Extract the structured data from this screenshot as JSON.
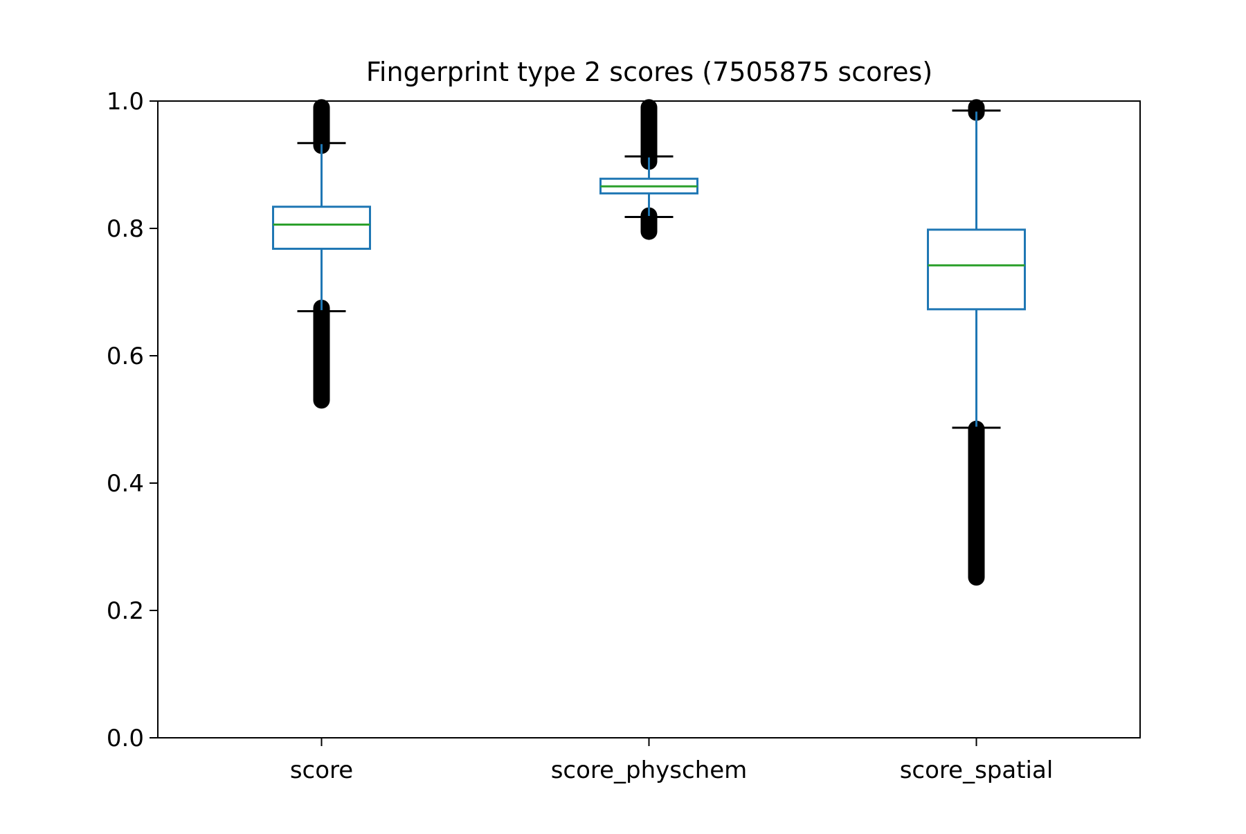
{
  "chart_data": {
    "type": "box",
    "title": "Fingerprint type 2 scores (7505875 scores)",
    "xlabel": "",
    "ylabel": "",
    "ylim": [
      0,
      1
    ],
    "yticks": [
      "0.0",
      "0.2",
      "0.4",
      "0.6",
      "0.8",
      "1.0"
    ],
    "grid": false,
    "categories": [
      "score",
      "score_physchem",
      "score_spatial"
    ],
    "boxes": [
      {
        "label": "score",
        "whisker_low": 0.67,
        "q1": 0.768,
        "median": 0.806,
        "q3": 0.834,
        "whisker_high": 0.934,
        "outliers_low": [
          0.53,
          0.675
        ],
        "outliers_high": [
          0.93,
          0.99
        ]
      },
      {
        "label": "score_physchem",
        "whisker_low": 0.818,
        "q1": 0.855,
        "median": 0.866,
        "q3": 0.878,
        "whisker_high": 0.913,
        "outliers_low": [
          0.795,
          0.82
        ],
        "outliers_high": [
          0.905,
          0.99
        ]
      },
      {
        "label": "score_spatial",
        "whisker_low": 0.487,
        "q1": 0.673,
        "median": 0.742,
        "q3": 0.798,
        "whisker_high": 0.985,
        "outliers_low": [
          0.252,
          0.485
        ],
        "outliers_high": [
          0.982,
          0.99
        ]
      }
    ],
    "colors": {
      "box": "#1f77b4",
      "median": "#2ca02c",
      "whisker_cap": "#000000",
      "outlier": "#000000"
    }
  }
}
